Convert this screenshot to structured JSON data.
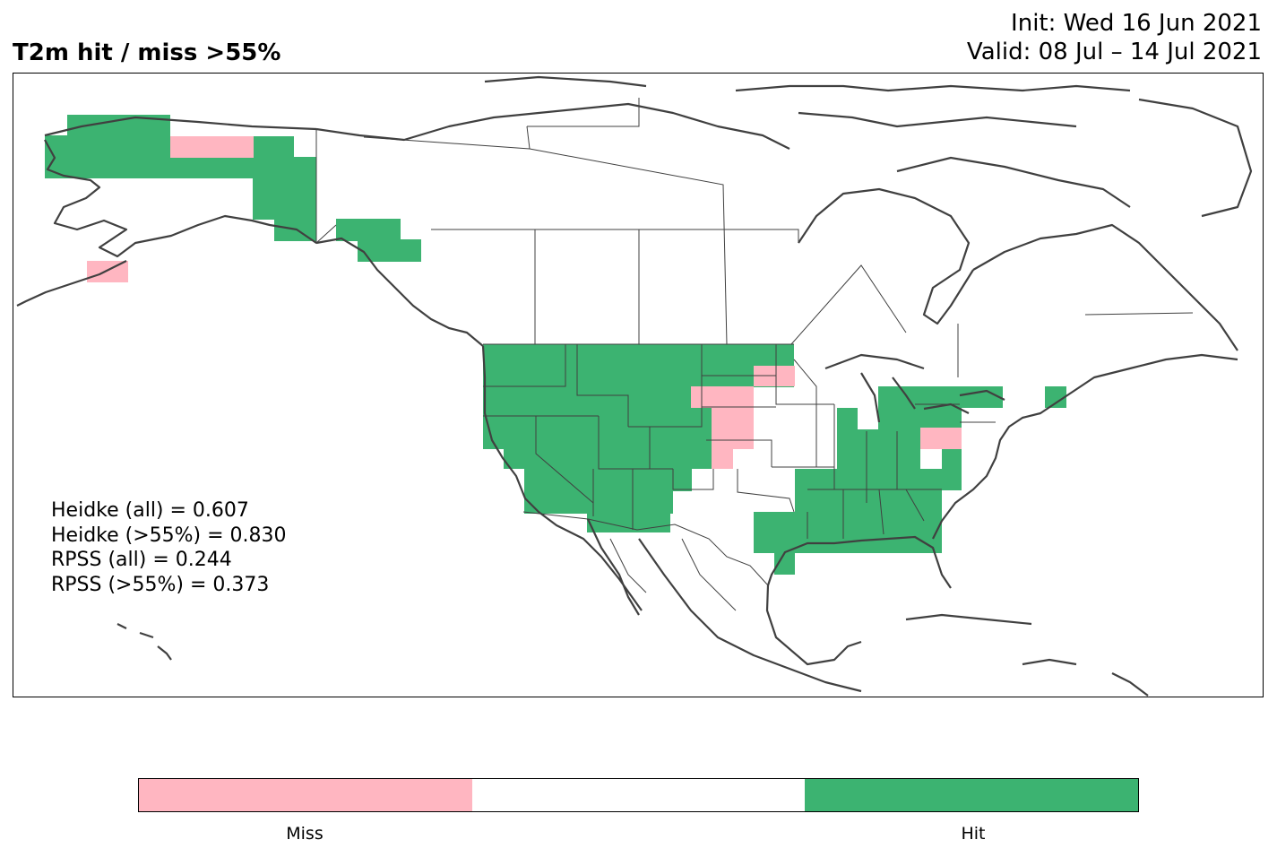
{
  "title": "T2m hit / miss  >55%",
  "init_line": "Init: Wed 16 Jun 2021",
  "valid_line": "Valid: 08 Jul – 14 Jul 2021",
  "stats": {
    "heidke_all": "Heidke (all) = 0.607",
    "heidke_55": "Heidke (>55%) = 0.830",
    "rpss_all": "RPSS (all) = 0.244",
    "rpss_55": "RPSS (>55%) = 0.373"
  },
  "legend": {
    "miss_label": "Miss",
    "hit_label": "Hit",
    "colors": {
      "miss": "#ffb6c1",
      "neutral": "#ffffff",
      "hit": "#3cb371"
    }
  },
  "colors": {
    "hit": "#3cb371",
    "miss": "#ffb6c1",
    "coastline": "#404040",
    "border": "#404040"
  }
}
